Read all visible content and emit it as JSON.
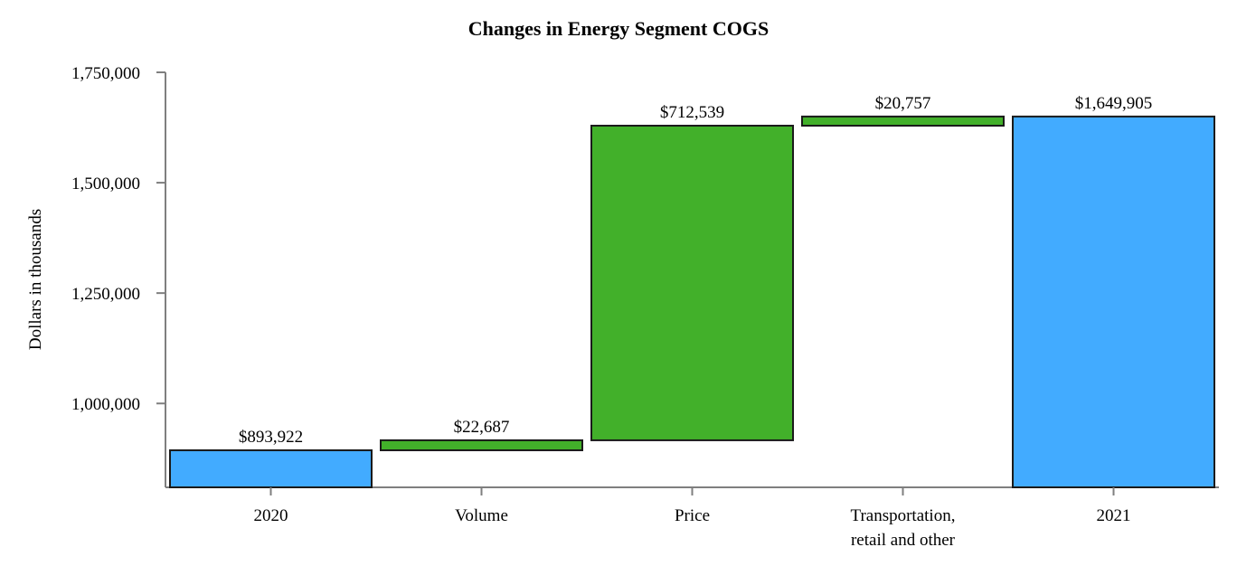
{
  "chart_data": {
    "type": "waterfall",
    "title": "Changes in Energy Segment COGS",
    "ylabel": "Dollars in thousands",
    "xlabel": "",
    "ylim": [
      810000,
      1750000
    ],
    "yticks": [
      1000000,
      1250000,
      1500000,
      1750000
    ],
    "ytick_labels": [
      "1,000,000",
      "1,250,000",
      "1,500,000",
      "1,750,000"
    ],
    "grid": false,
    "legend": "none",
    "bars": [
      {
        "category": [
          "2020"
        ],
        "kind": "total",
        "base": 0,
        "value": 893922,
        "label": "$893,922",
        "color": "#42abff"
      },
      {
        "category": [
          "Volume"
        ],
        "kind": "increase",
        "base": 893922,
        "value": 22687,
        "label": "$22,687",
        "color": "#42b02a"
      },
      {
        "category": [
          "Price"
        ],
        "kind": "increase",
        "base": 916609,
        "value": 712539,
        "label": "$712,539",
        "color": "#42b02a"
      },
      {
        "category": [
          "Transportation,",
          "retail and other"
        ],
        "kind": "increase",
        "base": 1629148,
        "value": 20757,
        "label": "$20,757",
        "color": "#42b02a"
      },
      {
        "category": [
          "2021"
        ],
        "kind": "total",
        "base": 0,
        "value": 1649905,
        "label": "$1,649,905",
        "color": "#42abff"
      }
    ]
  }
}
